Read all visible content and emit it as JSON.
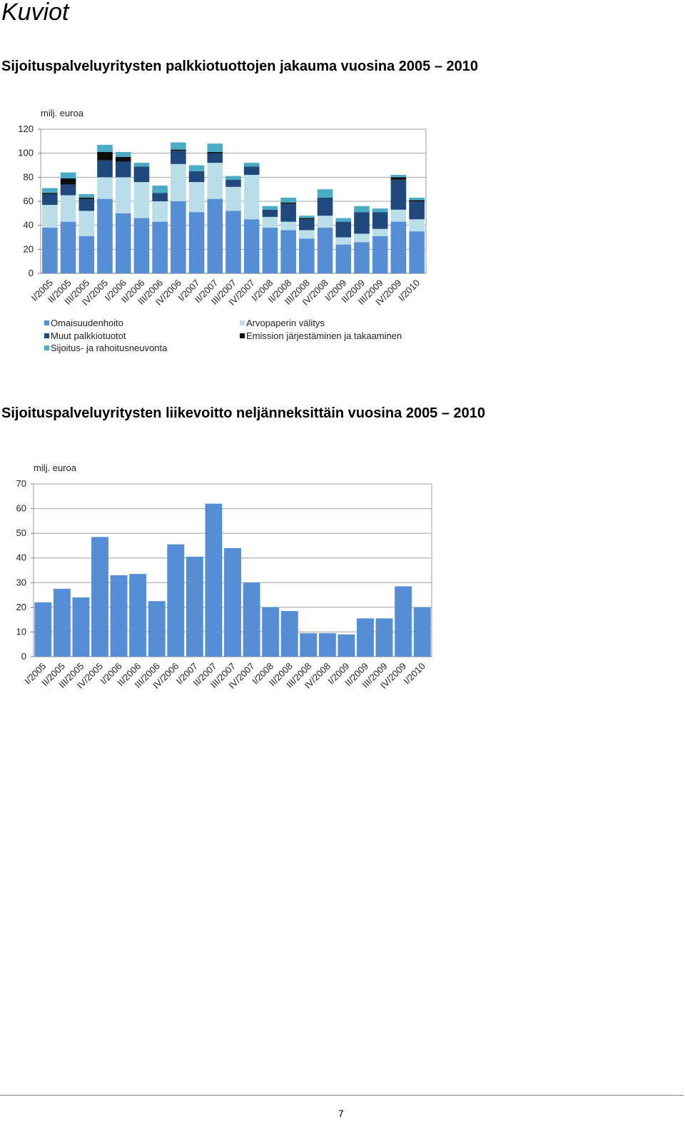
{
  "page": {
    "heading": "Kuviot",
    "page_number": "7"
  },
  "chart_data": [
    {
      "type": "bar",
      "stacked": true,
      "title": "Sijoituspalveluyritysten palkkiotuottojen jakauma vuosina 2005 – 2010",
      "ylabel": "milj. euroa",
      "ylim": [
        0,
        120
      ],
      "yticks": [
        0,
        20,
        40,
        60,
        80,
        100,
        120
      ],
      "grid": true,
      "legend": "bottom",
      "categories": [
        "I/2005",
        "II/2005",
        "III/2005",
        "IV/2005",
        "I/2006",
        "II/2006",
        "III/2006",
        "IV/2006",
        "I/2007",
        "II/2007",
        "III/2007",
        "IV/2007",
        "I/2008",
        "II/2008",
        "III/2008",
        "IV/2008",
        "I/2009",
        "II/2009",
        "III/2009",
        "IV/2009",
        "I/2010"
      ],
      "series": [
        {
          "name": "Omaisuudenhoito",
          "color": "#558ed5",
          "values": [
            38,
            43,
            31,
            62,
            50,
            46,
            43,
            60,
            51,
            62,
            52,
            45,
            38,
            36,
            29,
            38,
            24,
            26,
            31,
            43,
            35
          ]
        },
        {
          "name": "Arvopaperin välitys",
          "color": "#b9dde9",
          "values": [
            19,
            22,
            21,
            18,
            30,
            30,
            17,
            31,
            25,
            30,
            20,
            37,
            9,
            7,
            7,
            10,
            6,
            7,
            6,
            10,
            10
          ]
        },
        {
          "name": "Muut palkkiotuotot",
          "color": "#1f497d",
          "values": [
            9,
            9,
            10,
            14,
            13,
            13,
            7,
            11,
            9,
            8,
            6,
            7,
            6,
            15,
            9,
            15,
            13,
            18,
            14,
            25,
            15
          ]
        },
        {
          "name": "Emission järjestäminen ja takaaminen",
          "color": "#0d0d0d",
          "values": [
            1,
            5,
            1,
            7,
            4,
            0,
            0,
            1,
            0,
            1,
            0,
            0,
            0,
            1,
            1,
            0,
            0,
            0,
            0,
            2,
            1
          ]
        },
        {
          "name": "Sijoitus- ja rahoitusneuvonta",
          "color": "#4bacc6",
          "values": [
            4,
            5,
            3,
            6,
            4,
            3,
            6,
            6,
            5,
            7,
            3,
            3,
            3,
            4,
            2,
            7,
            3,
            5,
            3,
            2,
            2
          ]
        }
      ]
    },
    {
      "type": "bar",
      "title": "Sijoituspalveluyritysten liikevoitto neljänneksittäin vuosina 2005 – 2010",
      "ylabel": "milj. euroa",
      "ylim": [
        0,
        70
      ],
      "yticks": [
        0,
        10,
        20,
        30,
        40,
        50,
        60,
        70
      ],
      "grid": true,
      "color": "#558ed5",
      "categories": [
        "I/2005",
        "II/2005",
        "III/2005",
        "IV/2005",
        "I/2006",
        "II/2006",
        "III/2006",
        "IV/2006",
        "I/2007",
        "II/2007",
        "III/2007",
        "IV/2007",
        "I/2008",
        "II/2008",
        "III/2008",
        "IV/2008",
        "I/2009",
        "II/2009",
        "III/2009",
        "IV/2009",
        "I/2010"
      ],
      "values": [
        22,
        27.5,
        24,
        48.5,
        33,
        33.5,
        22.5,
        45.5,
        40.5,
        62,
        44,
        30,
        20,
        18.5,
        9.5,
        9.5,
        9,
        15.5,
        15.5,
        28.5,
        20
      ]
    }
  ]
}
